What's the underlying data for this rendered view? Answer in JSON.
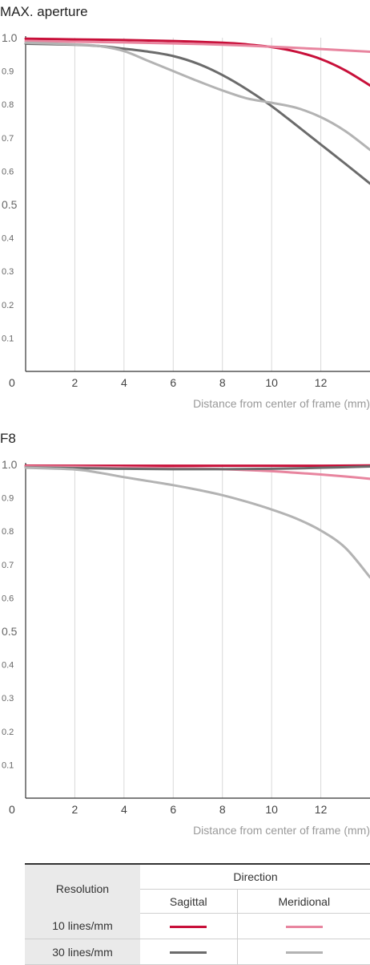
{
  "colors": {
    "s10": "#c8103a",
    "m10": "#e8859f",
    "s30": "#6b6b6b",
    "m30": "#b3b3b3"
  },
  "chart_data": [
    {
      "type": "line",
      "title": "MAX. aperture",
      "xlabel": "Distance from center of frame (mm)",
      "ylabel": "",
      "xlim": [
        0,
        14
      ],
      "ylim": [
        0,
        1.0
      ],
      "xticks": [
        "2",
        "4",
        "6",
        "8",
        "10",
        "12"
      ],
      "yticks": [
        "1.0",
        "0.9",
        "0.8",
        "0.7",
        "0.6",
        "0.5",
        "0.4",
        "0.3",
        "0.2",
        "0.1"
      ],
      "origin_label": "0",
      "grid": true,
      "series": [
        {
          "key": "s10",
          "color": "#c8103a",
          "x": [
            0,
            2,
            4,
            6,
            8,
            9,
            10,
            11,
            12,
            13,
            14
          ],
          "y": [
            0.997,
            0.995,
            0.993,
            0.99,
            0.985,
            0.98,
            0.972,
            0.958,
            0.936,
            0.902,
            0.857
          ]
        },
        {
          "key": "m10",
          "color": "#e8859f",
          "x": [
            0,
            2,
            4,
            6,
            8,
            10,
            12,
            14
          ],
          "y": [
            0.99,
            0.988,
            0.986,
            0.983,
            0.979,
            0.973,
            0.966,
            0.958
          ]
        },
        {
          "key": "s30",
          "color": "#6b6b6b",
          "x": [
            0,
            2,
            3,
            4,
            5,
            6,
            7,
            8,
            9,
            10,
            11,
            12,
            13,
            14
          ],
          "y": [
            0.982,
            0.979,
            0.975,
            0.967,
            0.958,
            0.945,
            0.922,
            0.888,
            0.845,
            0.795,
            0.738,
            0.68,
            0.622,
            0.563
          ]
        },
        {
          "key": "m30",
          "color": "#b3b3b3",
          "x": [
            0,
            2,
            3,
            4,
            5,
            6,
            7,
            8,
            9,
            10,
            11,
            12,
            13,
            14
          ],
          "y": [
            0.985,
            0.98,
            0.975,
            0.96,
            0.93,
            0.9,
            0.87,
            0.842,
            0.818,
            0.805,
            0.79,
            0.762,
            0.72,
            0.664
          ]
        }
      ]
    },
    {
      "type": "line",
      "title": "F8",
      "xlabel": "Distance from center of frame (mm)",
      "ylabel": "",
      "xlim": [
        0,
        14
      ],
      "ylim": [
        0,
        1.0
      ],
      "xticks": [
        "2",
        "4",
        "6",
        "8",
        "10",
        "12"
      ],
      "yticks": [
        "1.0",
        "0.9",
        "0.8",
        "0.7",
        "0.6",
        "0.5",
        "0.4",
        "0.3",
        "0.2",
        "0.1"
      ],
      "origin_label": "0",
      "grid": true,
      "series": [
        {
          "key": "s10",
          "color": "#c8103a",
          "x": [
            0,
            2,
            4,
            6,
            8,
            10,
            12,
            14
          ],
          "y": [
            0.996,
            0.996,
            0.996,
            0.996,
            0.996,
            0.996,
            0.996,
            0.997
          ]
        },
        {
          "key": "m10",
          "color": "#e8859f",
          "x": [
            0,
            2,
            4,
            6,
            8,
            10,
            11,
            12,
            13,
            14
          ],
          "y": [
            0.994,
            0.993,
            0.991,
            0.989,
            0.986,
            0.98,
            0.975,
            0.97,
            0.964,
            0.957
          ]
        },
        {
          "key": "s30",
          "color": "#6b6b6b",
          "x": [
            0,
            2,
            4,
            6,
            8,
            10,
            12,
            14
          ],
          "y": [
            0.991,
            0.989,
            0.987,
            0.986,
            0.986,
            0.987,
            0.99,
            0.994
          ]
        },
        {
          "key": "m30",
          "color": "#b3b3b3",
          "x": [
            0,
            2,
            3,
            4,
            5,
            6,
            7,
            8,
            9,
            10,
            11,
            12,
            13,
            14
          ],
          "y": [
            0.99,
            0.985,
            0.975,
            0.962,
            0.95,
            0.938,
            0.924,
            0.908,
            0.888,
            0.865,
            0.838,
            0.802,
            0.75,
            0.662
          ]
        }
      ]
    }
  ],
  "legend": {
    "resolution_header": "Resolution",
    "direction_header": "Direction",
    "sagittal": "Sagittal",
    "meridional": "Meridional",
    "row1": "10 lines/mm",
    "row2": "30 lines/mm"
  }
}
